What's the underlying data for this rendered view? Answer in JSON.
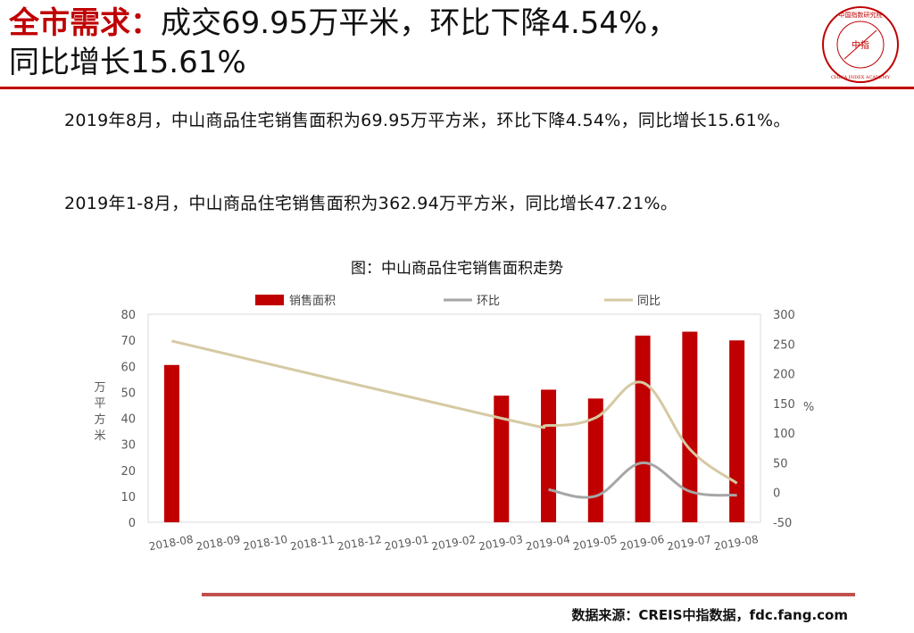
{
  "header": {
    "title_highlight": "全市需求：",
    "title_line1": "成交69.95万平米，环比下降4.54%，",
    "title_line2": "同比增长15.61%",
    "logo_text_cn": "中国指数研究院",
    "logo_center": "中指",
    "logo_text_en": "CHINA INDEX ACADEMY"
  },
  "body": {
    "paragraph1": "2019年8月，中山商品住宅销售面积为69.95万平方米，环比下降4.54%，同比增长15.61%。",
    "paragraph2": "2019年1-8月，中山商品住宅销售面积为362.94万平方米，同比增长47.21%。"
  },
  "footer": {
    "source": "数据来源：CREIS中指数据，fdc.fang.com"
  },
  "colors": {
    "accent": "#c00000",
    "bar": "#c00000",
    "mom_line": "#a6a6a6",
    "yoy_line": "#d6c9a3",
    "bottom_rule": "#c0504d"
  },
  "chart_data": {
    "type": "bar",
    "title": "图：中山商品住宅销售面积走势",
    "categories": [
      "2018-08",
      "2018-09",
      "2018-10",
      "2018-11",
      "2018-12",
      "2019-01",
      "2019-02",
      "2019-03",
      "2019-04",
      "2019-05",
      "2019-06",
      "2019-07",
      "2019-08"
    ],
    "series": [
      {
        "name": "销售面积",
        "type": "bar",
        "axis": "left",
        "values": [
          60.5,
          null,
          null,
          null,
          null,
          null,
          null,
          48.7,
          51,
          47.6,
          71.8,
          73.3,
          69.95
        ]
      },
      {
        "name": "环比",
        "type": "line",
        "axis": "right",
        "values": [
          null,
          null,
          null,
          null,
          null,
          null,
          null,
          null,
          5,
          -6,
          50,
          2,
          -4.54
        ]
      },
      {
        "name": "同比",
        "type": "line",
        "axis": "right",
        "values": [
          255,
          null,
          null,
          null,
          null,
          null,
          null,
          125,
          113,
          126,
          185,
          73,
          15.61
        ]
      }
    ],
    "ylabel": "万平方米",
    "y2label": "%",
    "ylim": [
      0,
      80
    ],
    "y_ticks": [
      0,
      10,
      20,
      30,
      40,
      50,
      60,
      70,
      80
    ],
    "y2lim": [
      -50,
      300
    ],
    "y2_ticks": [
      -50,
      0,
      50,
      100,
      150,
      200,
      250,
      300
    ],
    "grid": false,
    "legend": "top"
  }
}
